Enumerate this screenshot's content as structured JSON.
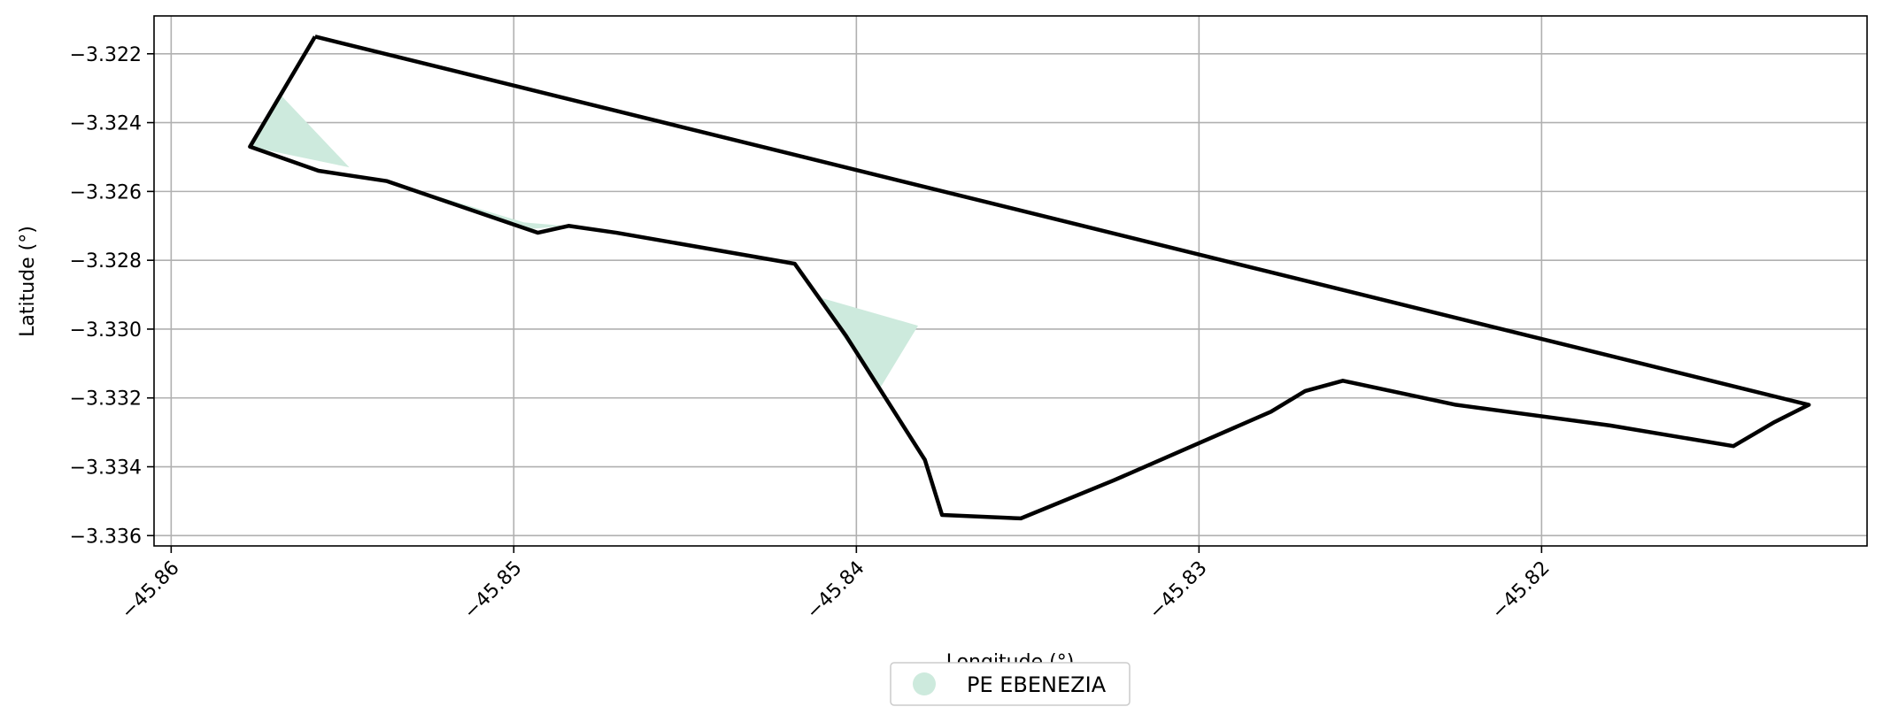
{
  "chart_data": {
    "type": "area",
    "title": "",
    "xlabel": "Longitude (°)",
    "ylabel": "Latitude (°)",
    "xlim": [
      -45.8605,
      -45.8105
    ],
    "ylim": [
      -3.3363,
      -3.3209
    ],
    "xticks": [
      -45.86,
      -45.85,
      -45.84,
      -45.83,
      -45.82
    ],
    "xtick_labels": [
      "−45.86",
      "−45.85",
      "−45.84",
      "−45.83",
      "−45.82"
    ],
    "yticks": [
      -3.322,
      -3.324,
      -3.326,
      -3.328,
      -3.33,
      -3.332,
      -3.334,
      -3.336
    ],
    "ytick_labels": [
      "−3.322",
      "−3.324",
      "−3.326",
      "−3.328",
      "−3.330",
      "−3.332",
      "−3.334",
      "−3.336"
    ],
    "grid": true,
    "legend": {
      "placement": "bottom-center",
      "entries": [
        "PE EBENEZIA"
      ]
    },
    "series": [
      {
        "name": "PE EBENEZIA",
        "kind": "filled-area",
        "color": "#cdeadd",
        "polygons": [
          [
            [
              -45.8568,
              -3.3232
            ],
            [
              -45.8577,
              -3.3247
            ],
            [
              -45.8548,
              -3.3253
            ]
          ],
          [
            [
              -45.8527,
              -3.326
            ],
            [
              -45.8496,
              -3.3271
            ],
            [
              -45.8485,
              -3.327
            ],
            [
              -45.8497,
              -3.3269
            ]
          ],
          [
            [
              -45.841,
              -3.3291
            ],
            [
              -45.8382,
              -3.3299
            ],
            [
              -45.8393,
              -3.3317
            ],
            [
              -45.8404,
              -3.3302
            ]
          ]
        ]
      },
      {
        "name": "",
        "kind": "boundary",
        "color": "#000000",
        "points": [
          [
            -45.8558,
            -3.3215
          ],
          [
            -45.8122,
            -3.3322
          ],
          [
            -45.8132,
            -3.3327
          ],
          [
            -45.8144,
            -3.3334
          ],
          [
            -45.818,
            -3.3328
          ],
          [
            -45.8225,
            -3.3322
          ],
          [
            -45.8258,
            -3.3315
          ],
          [
            -45.8269,
            -3.3318
          ],
          [
            -45.8279,
            -3.3324
          ],
          [
            -45.8325,
            -3.3344
          ],
          [
            -45.8352,
            -3.3355
          ],
          [
            -45.8375,
            -3.3354
          ],
          [
            -45.838,
            -3.3338
          ],
          [
            -45.8403,
            -3.3302
          ],
          [
            -45.8418,
            -3.3281
          ],
          [
            -45.847,
            -3.3272
          ],
          [
            -45.8484,
            -3.327
          ],
          [
            -45.8493,
            -3.3272
          ],
          [
            -45.8537,
            -3.3257
          ],
          [
            -45.8557,
            -3.3254
          ],
          [
            -45.8577,
            -3.3247
          ],
          [
            -45.8558,
            -3.3215
          ]
        ]
      }
    ]
  },
  "colors": {
    "grid": "#b0b0b0",
    "axes": "#000000",
    "fill": "#cdeadd",
    "boundary": "#000000"
  }
}
